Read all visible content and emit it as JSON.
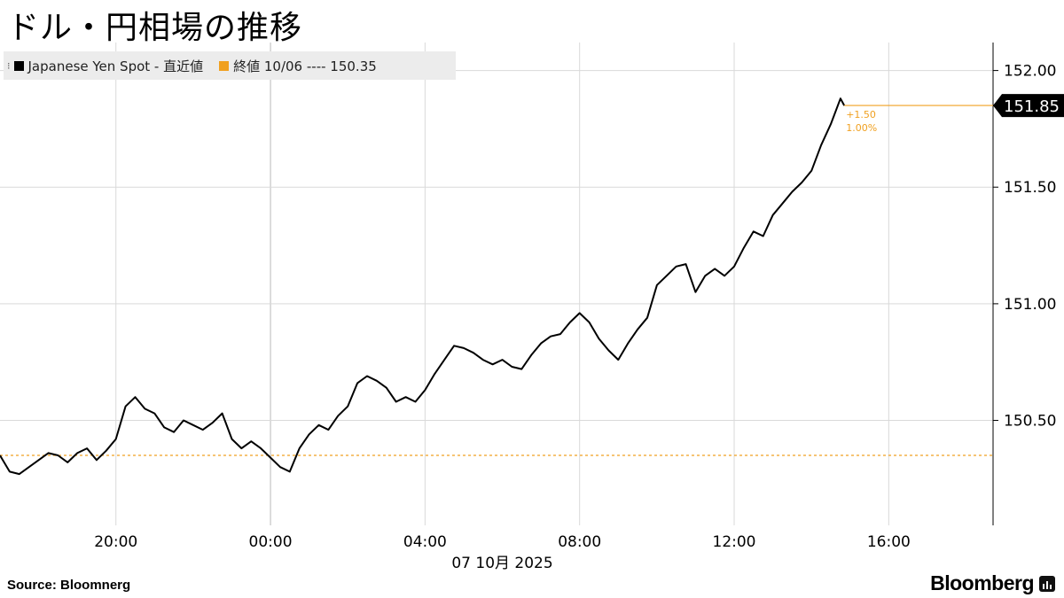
{
  "chart_data": {
    "type": "line",
    "title": "ドル・円相場の推移",
    "subtitle": "",
    "xlabel": "07 10月 2025",
    "ylabel": "",
    "x_ticks": [
      "20:00",
      "00:00",
      "04:00",
      "08:00",
      "12:00",
      "16:00"
    ],
    "x_tick_hours": [
      20,
      24,
      28,
      32,
      36,
      40
    ],
    "x_range_hours": [
      17.0,
      42.7
    ],
    "y_ticks": [
      "152.00",
      "151.50",
      "151.00",
      "150.50"
    ],
    "y_tick_values": [
      152.0,
      151.5,
      151.0,
      150.5
    ],
    "ylim": [
      150.05,
      152.12
    ],
    "grid": true,
    "legend_position": "top-left",
    "series": [
      {
        "name": "Japanese Yen Spot - 直近値",
        "color": "#000000",
        "x_hours": [
          17.0,
          17.25,
          17.5,
          17.75,
          18.0,
          18.25,
          18.5,
          18.75,
          19.0,
          19.25,
          19.5,
          19.75,
          20.0,
          20.25,
          20.5,
          20.75,
          21.0,
          21.25,
          21.5,
          21.75,
          22.0,
          22.25,
          22.5,
          22.75,
          23.0,
          23.25,
          23.5,
          23.75,
          24.0,
          24.25,
          24.5,
          24.75,
          25.0,
          25.25,
          25.5,
          25.75,
          26.0,
          26.25,
          26.5,
          26.75,
          27.0,
          27.25,
          27.5,
          27.75,
          28.0,
          28.25,
          28.5,
          28.75,
          29.0,
          29.25,
          29.5,
          29.75,
          30.0,
          30.25,
          30.5,
          30.75,
          31.0,
          31.25,
          31.5,
          31.75,
          32.0,
          32.25,
          32.5,
          32.75,
          33.0,
          33.25,
          33.5,
          33.75,
          34.0,
          34.25,
          34.5,
          34.75,
          35.0,
          35.25,
          35.5,
          35.75,
          36.0,
          36.25,
          36.5,
          36.75,
          37.0,
          37.25,
          37.5,
          37.75,
          38.0,
          38.25,
          38.5,
          38.75,
          38.85
        ],
        "values": [
          150.35,
          150.28,
          150.27,
          150.3,
          150.33,
          150.36,
          150.35,
          150.32,
          150.36,
          150.38,
          150.33,
          150.37,
          150.42,
          150.56,
          150.6,
          150.55,
          150.53,
          150.47,
          150.45,
          150.5,
          150.48,
          150.46,
          150.49,
          150.53,
          150.42,
          150.38,
          150.41,
          150.38,
          150.34,
          150.3,
          150.28,
          150.38,
          150.44,
          150.48,
          150.46,
          150.52,
          150.56,
          150.66,
          150.69,
          150.67,
          150.64,
          150.58,
          150.6,
          150.58,
          150.63,
          150.7,
          150.76,
          150.82,
          150.81,
          150.79,
          150.76,
          150.74,
          150.76,
          150.73,
          150.72,
          150.78,
          150.83,
          150.86,
          150.87,
          150.92,
          150.96,
          150.92,
          150.85,
          150.8,
          150.76,
          150.83,
          150.89,
          150.94,
          151.08,
          151.12,
          151.16,
          151.17,
          151.05,
          151.12,
          151.15,
          151.12,
          151.16,
          151.24,
          151.31,
          151.29,
          151.38,
          151.43,
          151.48,
          151.52,
          151.57,
          151.68,
          151.77,
          151.88,
          151.85
        ]
      }
    ],
    "reference_line": {
      "label": "終値 10/06 ---- 150.35",
      "value": 150.35,
      "color": "#f0a020"
    },
    "last_value_label": "151.85",
    "last_value": 151.85,
    "change_abs": "+1.50",
    "change_pct": "1.00%"
  },
  "footer": {
    "source": "Source:  Bloomnerg",
    "brand": "Bloomberg"
  },
  "colors": {
    "line": "#000000",
    "reference": "#f0a020",
    "grid": "#d9d9d9",
    "axis": "#000000"
  }
}
